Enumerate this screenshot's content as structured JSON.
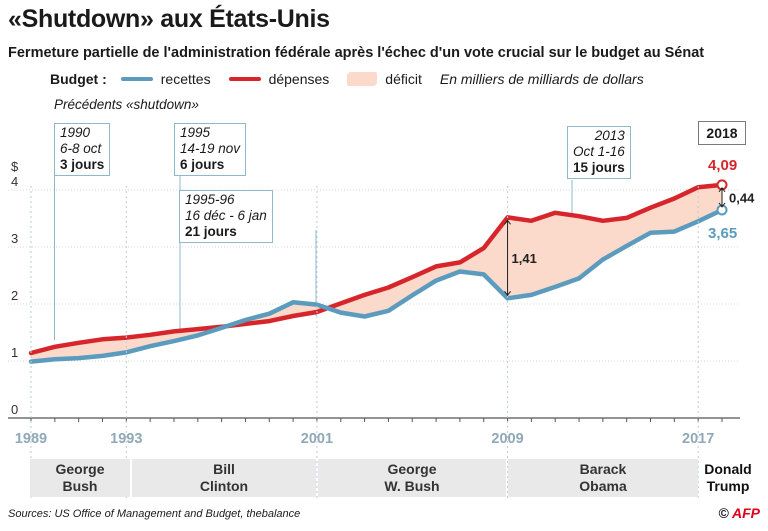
{
  "title": "«Shutdown» aux États-Unis",
  "subtitle": "Fermeture partielle de l'administration fédérale après l'échec d'un vote crucial sur le budget au Sénat",
  "legend": {
    "label": "Budget :",
    "revenues": "recettes",
    "expenses": "dépenses",
    "deficit": "déficit",
    "unit_note": "En milliers de milliards de dollars"
  },
  "precedents_label": "Précédents «shutdown»",
  "shutdowns": [
    {
      "year": "1990",
      "dates": "6-8 oct",
      "duration": "3 jours"
    },
    {
      "year": "1995",
      "dates": "14-19 nov",
      "duration": "6 jours"
    },
    {
      "year": "1995-96",
      "dates": "16 déc - 6 jan",
      "duration": "21 jours"
    },
    {
      "year": "2013",
      "dates": "Oct 1-16",
      "duration": "15 jours"
    }
  ],
  "highlight_year": "2018",
  "presidents": [
    {
      "line1": "George",
      "line2": "Bush"
    },
    {
      "line1": "Bill",
      "line2": "Clinton"
    },
    {
      "line1": "George",
      "line2": "W. Bush"
    },
    {
      "line1": "Barack",
      "line2": "Obama"
    },
    {
      "line1": "Donald",
      "line2": "Trump"
    }
  ],
  "source": "Sources: US Office of Management and Budget, thebalance",
  "logo": {
    "prefix": "© ",
    "brand": "AFP"
  },
  "colors": {
    "revenues": "#5b9bbd",
    "expenses": "#d7262b",
    "deficit": "#fbd9cb",
    "axis_years": "#8fa9b8"
  },
  "chart_data": {
    "type": "line",
    "y_unit": "$",
    "ylim": [
      0,
      4.3
    ],
    "yticks": [
      0,
      1,
      2,
      3,
      4
    ],
    "xlim": [
      1989,
      2018
    ],
    "x_tick_labels": [
      "1989",
      "1993",
      "2001",
      "2009",
      "2017"
    ],
    "x": [
      1989,
      1990,
      1991,
      1992,
      1993,
      1994,
      1995,
      1996,
      1997,
      1998,
      1999,
      2000,
      2001,
      2002,
      2003,
      2004,
      2005,
      2006,
      2007,
      2008,
      2009,
      2010,
      2011,
      2012,
      2013,
      2014,
      2015,
      2016,
      2017,
      2018
    ],
    "series": [
      {
        "name": "dépenses",
        "values": [
          1.14,
          1.25,
          1.32,
          1.38,
          1.41,
          1.46,
          1.52,
          1.56,
          1.6,
          1.65,
          1.7,
          1.79,
          1.86,
          2.01,
          2.16,
          2.29,
          2.47,
          2.66,
          2.73,
          2.98,
          3.52,
          3.46,
          3.6,
          3.54,
          3.46,
          3.51,
          3.69,
          3.85,
          4.05,
          4.09
        ]
      },
      {
        "name": "recettes",
        "values": [
          0.99,
          1.03,
          1.05,
          1.09,
          1.15,
          1.26,
          1.35,
          1.45,
          1.58,
          1.72,
          1.83,
          2.03,
          1.99,
          1.85,
          1.78,
          1.88,
          2.15,
          2.41,
          2.57,
          2.52,
          2.1,
          2.16,
          2.3,
          2.45,
          2.78,
          3.02,
          3.25,
          3.27,
          3.45,
          3.65
        ]
      }
    ],
    "annotations": [
      {
        "x": 2009,
        "label": "1,41"
      },
      {
        "x": 2018,
        "label": "0,44"
      },
      {
        "x": 2018,
        "label": "4,09"
      },
      {
        "x": 2018,
        "label": "3,65"
      }
    ]
  }
}
